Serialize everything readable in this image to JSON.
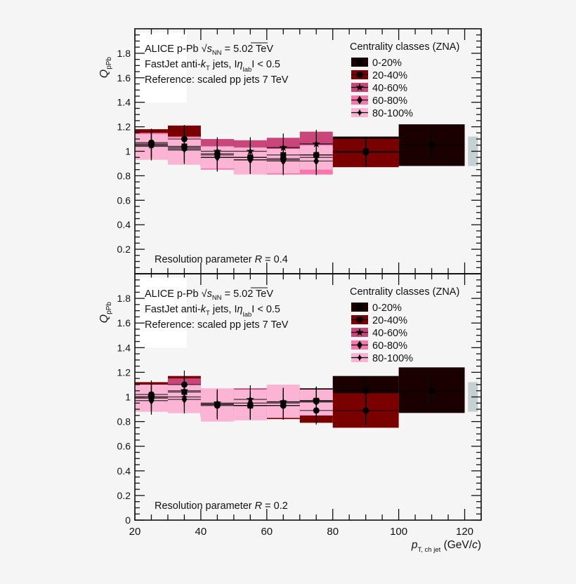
{
  "colors": {
    "background": "#f5f5f5",
    "c0_20": "#1b0000",
    "c20_40": "#7a0000",
    "c40_60": "#c8467a",
    "c60_80": "#f776ab",
    "c80_100": "#fbb4d4",
    "norm_box": "#c5d0d3"
  },
  "chart_data": [
    {
      "type": "bar",
      "panel": "top",
      "title": "",
      "xlabel": "p_T, ch jet (GeV/c)",
      "ylabel": "Q_pPb",
      "xlim": [
        20,
        125
      ],
      "ylim": [
        0,
        2.0
      ],
      "x_ticks": [
        "20",
        "40",
        "60",
        "80",
        "100",
        "120"
      ],
      "y_ticks": [
        "0.2",
        "0.4",
        "0.6",
        "0.8",
        "1",
        "1.2",
        "1.4",
        "1.6",
        "1.8"
      ],
      "annotations": [
        "ALICE p-Pb √s_NN = 5.02 TeV",
        "FastJet anti-k_T jets, |η_lab| < 0.5",
        "Reference: scaled pp jets 7 TeV",
        "Resolution parameter R = 0.4"
      ],
      "legend": {
        "title": "Centrality classes (ZNA)",
        "entries": [
          "0-20%",
          "20-40%",
          "40-60%",
          "60-80%",
          "80-100%"
        ],
        "position": "upper right"
      },
      "normalization_box": {
        "x": [
          121,
          124
        ],
        "y": [
          0.88,
          1.12
        ]
      },
      "series": [
        {
          "name": "0-20%",
          "marker": "square",
          "bins": [
            {
              "x": [
                20,
                30
              ],
              "y": 1.06,
              "lo": 0.94,
              "hi": 1.17
            },
            {
              "x": [
                30,
                40
              ],
              "y": 1.04,
              "lo": 0.92,
              "hi": 1.15
            },
            {
              "x": [
                40,
                50
              ],
              "y": 0.97,
              "lo": 0.86,
              "hi": 1.08
            },
            {
              "x": [
                50,
                60
              ],
              "y": 0.95,
              "lo": 0.84,
              "hi": 1.06
            },
            {
              "x": [
                60,
                70
              ],
              "y": 0.97,
              "lo": 0.86,
              "hi": 1.08
            },
            {
              "x": [
                70,
                80
              ],
              "y": 0.97,
              "lo": 0.86,
              "hi": 1.09
            },
            {
              "x": [
                80,
                100
              ],
              "y": 1.0,
              "lo": 0.88,
              "hi": 1.12
            },
            {
              "x": [
                100,
                120
              ],
              "y": 1.05,
              "lo": 0.88,
              "hi": 1.22
            }
          ]
        },
        {
          "name": "20-40%",
          "marker": "circle",
          "bins": [
            {
              "x": [
                20,
                30
              ],
              "y": 1.07,
              "lo": 0.96,
              "hi": 1.18
            },
            {
              "x": [
                30,
                40
              ],
              "y": 1.1,
              "lo": 0.98,
              "hi": 1.21
            },
            {
              "x": [
                40,
                50
              ],
              "y": 0.98,
              "lo": 0.88,
              "hi": 1.09
            },
            {
              "x": [
                50,
                60
              ],
              "y": 0.95,
              "lo": 0.85,
              "hi": 1.06
            },
            {
              "x": [
                60,
                70
              ],
              "y": 0.94,
              "lo": 0.84,
              "hi": 1.05
            },
            {
              "x": [
                70,
                80
              ],
              "y": 0.97,
              "lo": 0.86,
              "hi": 1.08
            },
            {
              "x": [
                80,
                100
              ],
              "y": 0.99,
              "lo": 0.87,
              "hi": 1.1
            }
          ]
        },
        {
          "name": "40-60%",
          "marker": "star",
          "bins": [
            {
              "x": [
                20,
                30
              ],
              "y": 1.05,
              "lo": 0.96,
              "hi": 1.14
            },
            {
              "x": [
                30,
                40
              ],
              "y": 1.03,
              "lo": 0.94,
              "hi": 1.12
            },
            {
              "x": [
                40,
                50
              ],
              "y": 1.0,
              "lo": 0.9,
              "hi": 1.1
            },
            {
              "x": [
                50,
                60
              ],
              "y": 1.0,
              "lo": 0.9,
              "hi": 1.09
            },
            {
              "x": [
                60,
                70
              ],
              "y": 1.03,
              "lo": 0.93,
              "hi": 1.11
            },
            {
              "x": [
                70,
                80
              ],
              "y": 1.06,
              "lo": 0.96,
              "hi": 1.16
            }
          ]
        },
        {
          "name": "60-80%",
          "marker": "diamond",
          "bins": [
            {
              "x": [
                20,
                30
              ],
              "y": 1.05,
              "lo": 0.94,
              "hi": 1.15
            },
            {
              "x": [
                30,
                40
              ],
              "y": 1.02,
              "lo": 0.91,
              "hi": 1.12
            },
            {
              "x": [
                40,
                50
              ],
              "y": 0.95,
              "lo": 0.85,
              "hi": 1.04
            },
            {
              "x": [
                50,
                60
              ],
              "y": 0.93,
              "lo": 0.84,
              "hi": 1.03
            },
            {
              "x": [
                60,
                70
              ],
              "y": 0.92,
              "lo": 0.81,
              "hi": 1.02
            },
            {
              "x": [
                70,
                80
              ],
              "y": 0.92,
              "lo": 0.81,
              "hi": 1.03
            }
          ]
        },
        {
          "name": "80-100%",
          "marker": "cross",
          "bins": [
            {
              "x": [
                20,
                30
              ],
              "y": 1.04,
              "lo": 0.93,
              "hi": 1.14
            },
            {
              "x": [
                30,
                40
              ],
              "y": 1.01,
              "lo": 0.89,
              "hi": 1.11
            },
            {
              "x": [
                40,
                50
              ],
              "y": 0.95,
              "lo": 0.86,
              "hi": 1.04
            },
            {
              "x": [
                50,
                60
              ],
              "y": 0.93,
              "lo": 0.81,
              "hi": 1.03
            },
            {
              "x": [
                60,
                70
              ],
              "y": 0.93,
              "lo": 0.82,
              "hi": 1.02
            },
            {
              "x": [
                70,
                80
              ],
              "y": 0.95,
              "lo": 0.85,
              "hi": 1.05
            }
          ]
        }
      ]
    },
    {
      "type": "bar",
      "panel": "bottom",
      "title": "",
      "xlabel": "p_T, ch jet (GeV/c)",
      "ylabel": "Q_pPb",
      "xlim": [
        20,
        125
      ],
      "ylim": [
        0,
        2.0
      ],
      "x_ticks": [
        "20",
        "40",
        "60",
        "80",
        "100",
        "120"
      ],
      "y_ticks": [
        "0.2",
        "0.4",
        "0.6",
        "0.8",
        "1",
        "1.2",
        "1.4",
        "1.6",
        "1.8"
      ],
      "annotations": [
        "ALICE p-Pb √s_NN = 5.02 TeV",
        "FastJet anti-k_T jets, |η_lab| < 0.5",
        "Reference: scaled pp jets 7 TeV",
        "Resolution parameter R = 0.2"
      ],
      "legend": {
        "title": "Centrality classes (ZNA)",
        "entries": [
          "0-20%",
          "20-40%",
          "40-60%",
          "60-80%",
          "80-100%"
        ],
        "position": "upper right"
      },
      "normalization_box": {
        "x": [
          121,
          124
        ],
        "y": [
          0.88,
          1.12
        ]
      },
      "series": [
        {
          "name": "0-20%",
          "marker": "square",
          "bins": [
            {
              "x": [
                20,
                30
              ],
              "y": 1.0,
              "lo": 0.9,
              "hi": 1.09
            },
            {
              "x": [
                30,
                40
              ],
              "y": 1.04,
              "lo": 0.93,
              "hi": 1.14
            },
            {
              "x": [
                40,
                50
              ],
              "y": 0.94,
              "lo": 0.84,
              "hi": 1.04
            },
            {
              "x": [
                50,
                60
              ],
              "y": 0.93,
              "lo": 0.83,
              "hi": 1.03
            },
            {
              "x": [
                60,
                70
              ],
              "y": 0.95,
              "lo": 0.85,
              "hi": 1.05
            },
            {
              "x": [
                70,
                80
              ],
              "y": 0.97,
              "lo": 0.87,
              "hi": 1.07
            },
            {
              "x": [
                80,
                100
              ],
              "y": 1.05,
              "lo": 0.93,
              "hi": 1.17
            },
            {
              "x": [
                100,
                120
              ],
              "y": 1.05,
              "lo": 0.87,
              "hi": 1.24
            }
          ]
        },
        {
          "name": "20-40%",
          "marker": "circle",
          "bins": [
            {
              "x": [
                20,
                30
              ],
              "y": 1.02,
              "lo": 0.92,
              "hi": 1.12
            },
            {
              "x": [
                30,
                40
              ],
              "y": 1.1,
              "lo": 0.99,
              "hi": 1.17
            },
            {
              "x": [
                40,
                50
              ],
              "y": 0.93,
              "lo": 0.84,
              "hi": 1.03
            },
            {
              "x": [
                50,
                60
              ],
              "y": 0.93,
              "lo": 0.83,
              "hi": 1.03
            },
            {
              "x": [
                60,
                70
              ],
              "y": 0.93,
              "lo": 0.82,
              "hi": 1.04
            },
            {
              "x": [
                70,
                80
              ],
              "y": 0.89,
              "lo": 0.79,
              "hi": 0.98
            },
            {
              "x": [
                80,
                100
              ],
              "y": 0.89,
              "lo": 0.75,
              "hi": 1.03
            }
          ]
        },
        {
          "name": "40-60%",
          "marker": "star",
          "bins": [
            {
              "x": [
                20,
                30
              ],
              "y": 1.0,
              "lo": 0.91,
              "hi": 1.09
            },
            {
              "x": [
                30,
                40
              ],
              "y": 1.05,
              "lo": 0.95,
              "hi": 1.15
            },
            {
              "x": [
                40,
                50
              ],
              "y": 0.95,
              "lo": 0.87,
              "hi": 1.05
            },
            {
              "x": [
                50,
                60
              ],
              "y": 0.98,
              "lo": 0.9,
              "hi": 1.07
            },
            {
              "x": [
                60,
                70
              ],
              "y": 0.96,
              "lo": 0.87,
              "hi": 1.05
            },
            {
              "x": [
                70,
                80
              ],
              "y": 0.97,
              "lo": 0.88,
              "hi": 1.06
            }
          ]
        },
        {
          "name": "60-80%",
          "marker": "diamond",
          "bins": [
            {
              "x": [
                20,
                30
              ],
              "y": 0.97,
              "lo": 0.88,
              "hi": 1.07
            },
            {
              "x": [
                30,
                40
              ],
              "y": 0.98,
              "lo": 0.87,
              "hi": 1.08
            },
            {
              "x": [
                40,
                50
              ],
              "y": 0.94,
              "lo": 0.84,
              "hi": 1.05
            },
            {
              "x": [
                50,
                60
              ],
              "y": 0.93,
              "lo": 0.83,
              "hi": 1.04
            },
            {
              "x": [
                60,
                70
              ],
              "y": 0.93,
              "lo": 0.83,
              "hi": 1.06
            },
            {
              "x": [
                70,
                80
              ],
              "y": 0.96,
              "lo": 0.85,
              "hi": 1.06
            }
          ]
        },
        {
          "name": "80-100%",
          "marker": "cross",
          "bins": [
            {
              "x": [
                20,
                30
              ],
              "y": 0.99,
              "lo": 0.88,
              "hi": 1.1
            },
            {
              "x": [
                30,
                40
              ],
              "y": 1.0,
              "lo": 0.87,
              "hi": 1.1
            },
            {
              "x": [
                40,
                50
              ],
              "y": 0.94,
              "lo": 0.8,
              "hi": 1.07
            },
            {
              "x": [
                50,
                60
              ],
              "y": 0.95,
              "lo": 0.81,
              "hi": 1.06
            },
            {
              "x": [
                60,
                70
              ],
              "y": 0.96,
              "lo": 0.83,
              "hi": 1.1
            },
            {
              "x": [
                70,
                80
              ],
              "y": 0.96,
              "lo": 0.85,
              "hi": 1.06
            }
          ]
        }
      ]
    }
  ],
  "labels": {
    "ylabel_main": "Q",
    "ylabel_sub": "pPb",
    "xlabel_main": "p",
    "xlabel_sub": "T, ch jet",
    "xlabel_unit_pre": " (GeV/",
    "xlabel_unit_c": "c",
    "xlabel_unit_post": ")",
    "alice_text": "ALICE p-Pb ",
    "sqrt_s": "s",
    "sqrt_s_sub": "NN",
    "energy": " = 5.02 TeV",
    "fastjet_pre": "FastJet anti-",
    "fastjet_k": "k",
    "fastjet_ksub": "T",
    "fastjet_mid": " jets, I",
    "eta": "η",
    "eta_sub": "lab",
    "fastjet_post": "I < 0.5",
    "reference": "Reference: scaled pp jets 7 TeV",
    "resolution_pre": "Resolution parameter ",
    "resolution_R": "R",
    "resolution_top": " = 0.4",
    "resolution_bottom": " = 0.2",
    "legend_title": "Centrality classes (ZNA)"
  }
}
